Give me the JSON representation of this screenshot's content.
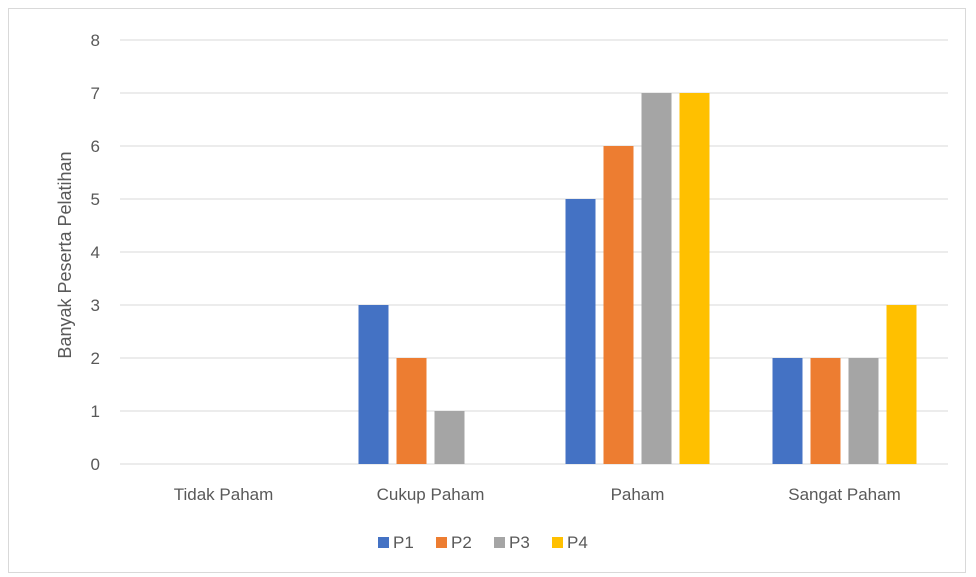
{
  "chart_data": {
    "type": "bar",
    "title": "",
    "xlabel": "",
    "ylabel": "Banyak Peserta Pelatihan",
    "ylim": [
      0,
      8
    ],
    "yticks": [
      0,
      1,
      2,
      3,
      4,
      5,
      6,
      7,
      8
    ],
    "grid": true,
    "legend_position": "bottom",
    "categories": [
      "Tidak Paham",
      "Cukup Paham",
      "Paham",
      "Sangat Paham"
    ],
    "series": [
      {
        "name": "P1",
        "color": "#4472c4",
        "values": [
          0,
          3,
          5,
          2
        ]
      },
      {
        "name": "P2",
        "color": "#ed7d31",
        "values": [
          0,
          2,
          6,
          2
        ]
      },
      {
        "name": "P3",
        "color": "#a5a5a5",
        "values": [
          0,
          1,
          7,
          2
        ]
      },
      {
        "name": "P4",
        "color": "#ffc000",
        "values": [
          0,
          0,
          7,
          3
        ]
      }
    ]
  }
}
